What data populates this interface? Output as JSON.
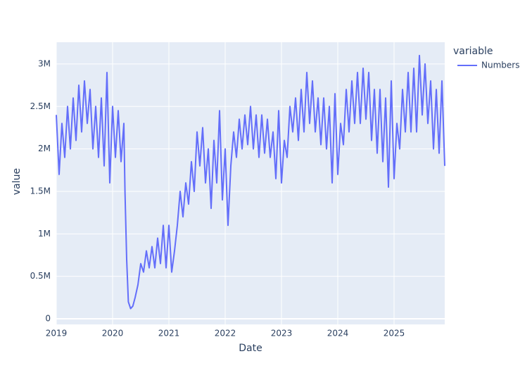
{
  "chart_data": {
    "type": "line",
    "x_label": "Date",
    "y_label": "value",
    "legend_title": "variable",
    "x": [
      2019.0,
      2019.05,
      2019.1,
      2019.15,
      2019.2,
      2019.25,
      2019.3,
      2019.35,
      2019.4,
      2019.45,
      2019.5,
      2019.55,
      2019.6,
      2019.65,
      2019.7,
      2019.75,
      2019.8,
      2019.85,
      2019.9,
      2019.95,
      2020.0,
      2020.05,
      2020.1,
      2020.15,
      2020.2,
      2020.22,
      2020.25,
      2020.28,
      2020.32,
      2020.36,
      2020.4,
      2020.45,
      2020.5,
      2020.55,
      2020.6,
      2020.65,
      2020.7,
      2020.75,
      2020.8,
      2020.85,
      2020.9,
      2020.95,
      2021.0,
      2021.05,
      2021.1,
      2021.15,
      2021.2,
      2021.25,
      2021.3,
      2021.35,
      2021.4,
      2021.45,
      2021.5,
      2021.55,
      2021.6,
      2021.65,
      2021.7,
      2021.75,
      2021.8,
      2021.85,
      2021.9,
      2021.95,
      2022.0,
      2022.05,
      2022.1,
      2022.15,
      2022.2,
      2022.25,
      2022.3,
      2022.35,
      2022.4,
      2022.45,
      2022.5,
      2022.55,
      2022.6,
      2022.65,
      2022.7,
      2022.75,
      2022.8,
      2022.85,
      2022.9,
      2022.95,
      2023.0,
      2023.05,
      2023.1,
      2023.15,
      2023.2,
      2023.25,
      2023.3,
      2023.35,
      2023.4,
      2023.45,
      2023.5,
      2023.55,
      2023.6,
      2023.65,
      2023.7,
      2023.75,
      2023.8,
      2023.85,
      2023.9,
      2023.95,
      2024.0,
      2024.05,
      2024.1,
      2024.15,
      2024.2,
      2024.25,
      2024.3,
      2024.35,
      2024.4,
      2024.45,
      2024.5,
      2024.55,
      2024.6,
      2024.65,
      2024.7,
      2024.75,
      2024.8,
      2024.85,
      2024.9,
      2024.95,
      2025.0,
      2025.05,
      2025.1,
      2025.15,
      2025.2,
      2025.25,
      2025.3,
      2025.35,
      2025.4,
      2025.45,
      2025.5,
      2025.55,
      2025.6,
      2025.65,
      2025.7,
      2025.75,
      2025.8,
      2025.85,
      2025.9
    ],
    "series": [
      {
        "name": "Numbers",
        "color": "#636efa",
        "values": [
          2400000,
          1700000,
          2300000,
          1900000,
          2500000,
          2000000,
          2600000,
          2100000,
          2750000,
          2200000,
          2800000,
          2300000,
          2700000,
          2000000,
          2500000,
          1900000,
          2600000,
          1800000,
          2900000,
          1600000,
          2500000,
          1900000,
          2450000,
          1850000,
          2300000,
          1500000,
          700000,
          200000,
          120000,
          150000,
          250000,
          400000,
          650000,
          550000,
          800000,
          600000,
          850000,
          600000,
          950000,
          650000,
          1100000,
          600000,
          1100000,
          550000,
          800000,
          1100000,
          1500000,
          1200000,
          1600000,
          1350000,
          1850000,
          1500000,
          2200000,
          1800000,
          2250000,
          1600000,
          2000000,
          1300000,
          2100000,
          1600000,
          2450000,
          1400000,
          2000000,
          1100000,
          1800000,
          2200000,
          1900000,
          2350000,
          2000000,
          2400000,
          2050000,
          2500000,
          2000000,
          2400000,
          1900000,
          2400000,
          1950000,
          2350000,
          1900000,
          2200000,
          1650000,
          2450000,
          1600000,
          2100000,
          1900000,
          2500000,
          2200000,
          2600000,
          2100000,
          2700000,
          2200000,
          2900000,
          2300000,
          2800000,
          2200000,
          2600000,
          2050000,
          2600000,
          2000000,
          2500000,
          1600000,
          2650000,
          1700000,
          2300000,
          2050000,
          2700000,
          2200000,
          2800000,
          2300000,
          2900000,
          2300000,
          2950000,
          2350000,
          2900000,
          2100000,
          2700000,
          1950000,
          2700000,
          1850000,
          2600000,
          1550000,
          2800000,
          1650000,
          2300000,
          2000000,
          2700000,
          2200000,
          2900000,
          2200000,
          2950000,
          2200000,
          3100000,
          2400000,
          3000000,
          2300000,
          2800000,
          2000000,
          2700000,
          1950000,
          2800000,
          1800000
        ]
      }
    ],
    "xlim": [
      2019,
      2025.9
    ],
    "xticks": [
      2019,
      2020,
      2021,
      2022,
      2023,
      2024,
      2025
    ],
    "ylim": [
      -66000,
      3256000
    ],
    "yticks": [
      0,
      {
        "value": 500000,
        "label": "0.5M"
      },
      {
        "value": 1000000,
        "label": "1M"
      },
      {
        "value": 1500000,
        "label": "1.5M"
      },
      {
        "value": 2000000,
        "label": "2M"
      },
      {
        "value": 2500000,
        "label": "2.5M"
      },
      {
        "value": 3000000,
        "label": "3M"
      }
    ],
    "grid": true
  }
}
